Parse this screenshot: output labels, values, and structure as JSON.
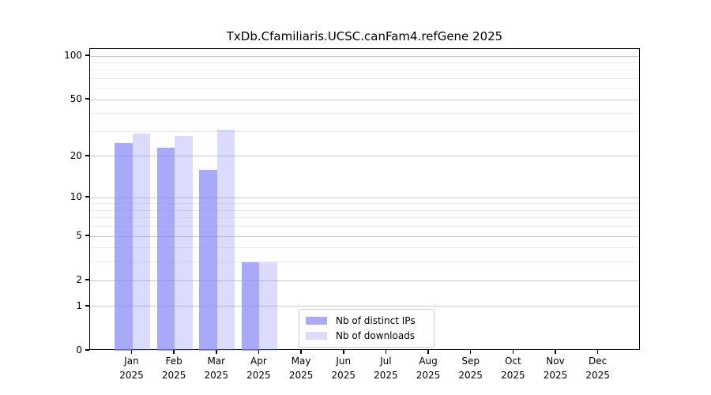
{
  "title": "TxDb.Cfamiliaris.UCSC.canFam4.refGene 2025",
  "chart_data": {
    "type": "bar",
    "title": "TxDb.Cfamiliaris.UCSC.canFam4.refGene 2025",
    "categories": [
      "Jan 2025",
      "Feb 2025",
      "Mar 2025",
      "Apr 2025",
      "May 2025",
      "Jun 2025",
      "Jul 2025",
      "Aug 2025",
      "Sep 2025",
      "Oct 2025",
      "Nov 2025",
      "Dec 2025"
    ],
    "series": [
      {
        "name": "Nb of distinct IPs",
        "color": "rgba(136,136,248,0.72)",
        "values": [
          25,
          23,
          16,
          3,
          0,
          0,
          0,
          0,
          0,
          0,
          0,
          0
        ]
      },
      {
        "name": "Nb of downloads",
        "color": "rgba(136,136,248,0.30)",
        "values": [
          29,
          28,
          31,
          3,
          0,
          0,
          0,
          0,
          0,
          0,
          0,
          0
        ]
      }
    ],
    "xlabel": "",
    "ylabel": "",
    "yscale": "log1p",
    "ylim": [
      0,
      112
    ],
    "y_major_ticks": [
      0,
      1,
      2,
      5,
      10,
      20,
      50,
      100
    ],
    "y_minor_ticks": [
      3,
      4,
      6,
      7,
      8,
      9,
      30,
      40,
      60,
      70,
      80,
      90
    ],
    "grid": "horizontal",
    "legend_position": "inside-bottom-center"
  },
  "colors": {
    "background": "#ffffff",
    "axis": "#000000",
    "text": "#000000",
    "grid_major": "#c9c9c9",
    "grid_minor": "#ebebeb",
    "legend_border": "#cccccc"
  }
}
